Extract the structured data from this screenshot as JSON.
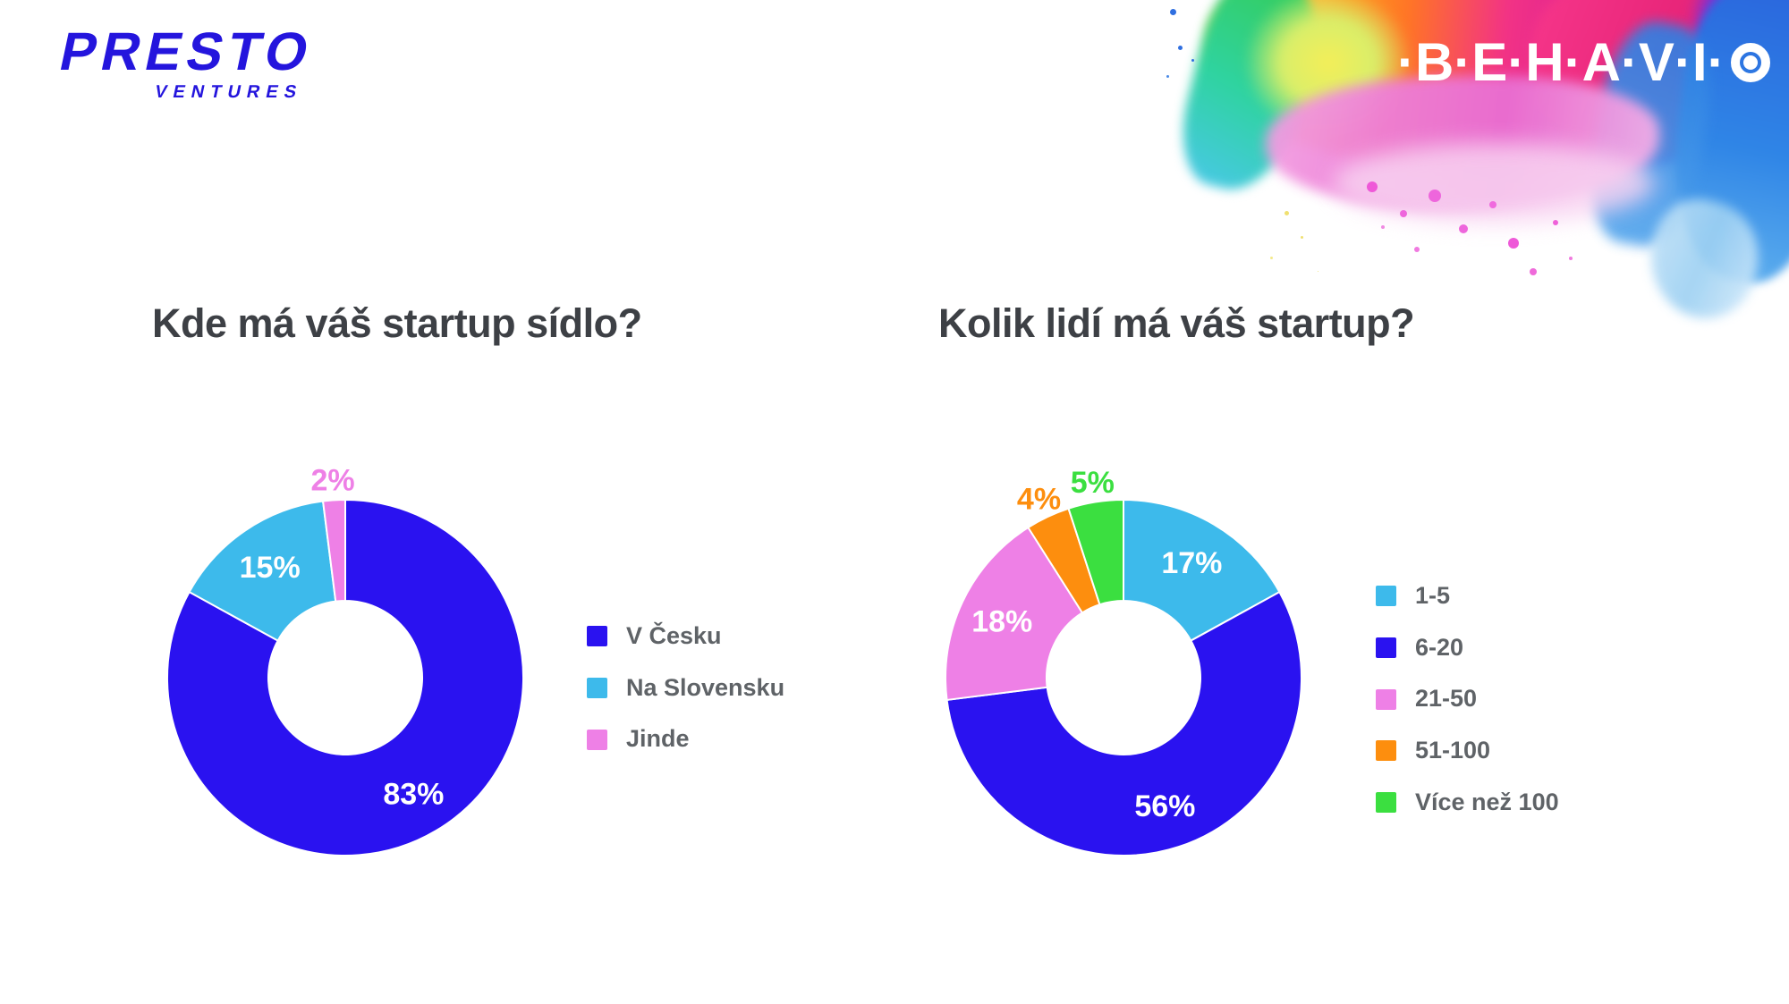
{
  "page": {
    "background_color": "#ffffff",
    "title_color": "#3d4045",
    "legend_text_color": "#5f6367"
  },
  "header": {
    "presto_logo": {
      "line1": "PRESTO",
      "line2": "VENTURES",
      "color": "#2415dd"
    },
    "behavio_logo": {
      "text": "·B·E·H·A·V·I·",
      "icon": "target-icon",
      "color": "#ffffff"
    }
  },
  "chart_data": [
    {
      "type": "donut",
      "title": "Kde má váš startup sídlo?",
      "categories": [
        "V Česku",
        "Na Slovensku",
        "Jinde"
      ],
      "values": [
        83,
        15,
        2
      ],
      "labels": [
        "83%",
        "15%",
        "2%"
      ],
      "colors": [
        "#2a12f0",
        "#3dbaeb",
        "#ee80e6"
      ],
      "inside_label_color": "#ffffff",
      "start_angle": 0,
      "inner_radius_ratio": 0.43,
      "legend_position": "right"
    },
    {
      "type": "donut",
      "title": "Kolik lidí má váš startup?",
      "categories": [
        "1-5",
        "6-20",
        "21-50",
        "51-100",
        "Více než 100"
      ],
      "values": [
        17,
        56,
        18,
        4,
        5
      ],
      "labels": [
        "17%",
        "56%",
        "18%",
        "4%",
        "5%"
      ],
      "colors": [
        "#3dbaeb",
        "#2a12f0",
        "#ee80e6",
        "#fd8e0e",
        "#3bdf40"
      ],
      "inside_label_color": "#ffffff",
      "start_angle": 0,
      "inner_radius_ratio": 0.43,
      "legend_position": "right"
    }
  ]
}
